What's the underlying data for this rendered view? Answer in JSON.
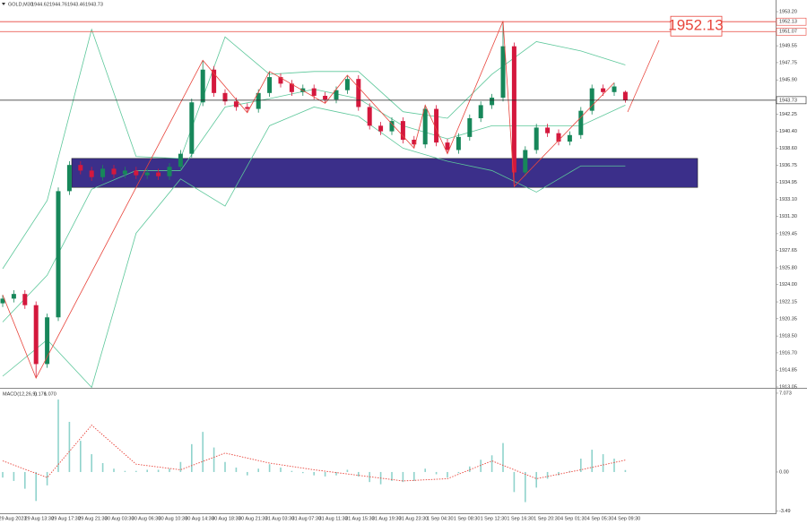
{
  "chart_data": [
    {
      "type": "candlestick",
      "title": "GOLD,M30",
      "up_color": "#17875a",
      "down_color": "#d4183d",
      "open": [
        1922.0,
        1922.5,
        1923.0,
        1921.8,
        1915.5,
        1920.5,
        1934.0,
        1936.8,
        1936.2,
        1935.5,
        1936.4,
        1935.8,
        1936.2,
        1935.7,
        1936.0,
        1935.6,
        1936.6,
        1938.0,
        1943.5,
        1947.0,
        1944.5,
        1943.6,
        1943.0,
        1942.8,
        1944.5,
        1946.2,
        1945.5,
        1944.6,
        1945.0,
        1944.2,
        1943.8,
        1944.8,
        1946.0,
        1943.0,
        1941.0,
        1940.4,
        1941.5,
        1939.5,
        1939.0,
        1942.8,
        1939.2,
        1938.4,
        1939.8,
        1941.8,
        1943.2,
        1944.0,
        1949.5,
        1936.0,
        1938.4,
        1940.8,
        1940.2,
        1939.3,
        1940.0,
        1942.6,
        1945.0,
        1944.6,
        1944.62
      ],
      "high": [
        1922.9,
        1923.4,
        1923.4,
        1922.2,
        1920.9,
        1934.4,
        1937.2,
        1937.2,
        1936.6,
        1936.8,
        1936.8,
        1936.6,
        1936.6,
        1936.4,
        1936.4,
        1937.0,
        1938.4,
        1943.9,
        1948.0,
        1947.4,
        1944.9,
        1944.0,
        1943.4,
        1944.9,
        1946.8,
        1946.6,
        1945.9,
        1945.4,
        1945.4,
        1944.6,
        1945.2,
        1946.4,
        1946.4,
        1943.4,
        1941.4,
        1941.9,
        1941.9,
        1939.9,
        1943.2,
        1943.2,
        1939.6,
        1940.2,
        1942.2,
        1943.6,
        1944.4,
        1952.2,
        1949.9,
        1938.8,
        1941.2,
        1941.2,
        1940.6,
        1940.4,
        1943.0,
        1945.4,
        1945.4,
        1945.6,
        1944.76
      ],
      "low": [
        1921.6,
        1922.1,
        1921.4,
        1914.0,
        1915.1,
        1920.1,
        1933.6,
        1935.8,
        1935.1,
        1935.1,
        1935.4,
        1935.4,
        1935.3,
        1935.3,
        1935.2,
        1935.2,
        1936.2,
        1937.6,
        1943.1,
        1944.1,
        1943.2,
        1942.6,
        1942.4,
        1942.4,
        1944.1,
        1945.1,
        1944.2,
        1944.2,
        1943.8,
        1943.4,
        1943.4,
        1944.4,
        1942.6,
        1940.6,
        1940.0,
        1940.0,
        1939.1,
        1938.6,
        1938.6,
        1938.8,
        1938.0,
        1938.0,
        1939.4,
        1941.4,
        1942.8,
        1943.6,
        1934.5,
        1935.6,
        1938.0,
        1939.8,
        1938.9,
        1938.9,
        1939.6,
        1942.2,
        1944.2,
        1944.2,
        1943.46
      ],
      "close": [
        1922.5,
        1923.0,
        1921.8,
        1915.5,
        1920.5,
        1934.0,
        1936.8,
        1936.2,
        1935.5,
        1936.4,
        1935.8,
        1936.2,
        1935.7,
        1936.0,
        1935.6,
        1936.6,
        1938.0,
        1943.5,
        1947.0,
        1944.5,
        1943.6,
        1943.0,
        1942.8,
        1944.5,
        1946.2,
        1945.5,
        1944.6,
        1945.0,
        1944.2,
        1943.8,
        1944.8,
        1946.0,
        1943.0,
        1941.0,
        1940.4,
        1941.5,
        1939.5,
        1939.0,
        1942.8,
        1939.2,
        1938.4,
        1939.8,
        1941.8,
        1943.2,
        1944.0,
        1949.5,
        1936.0,
        1938.4,
        1940.8,
        1940.2,
        1939.3,
        1940.0,
        1942.6,
        1945.0,
        1944.6,
        1945.2,
        1943.73
      ],
      "bands": {
        "color": "#5cc79a",
        "x": [
          0,
          4,
          8,
          12,
          16,
          20,
          24,
          28,
          32,
          36,
          40,
          44,
          48,
          52,
          56
        ],
        "upper": [
          1925.7,
          1933.0,
          1951.3,
          1937.7,
          1937.5,
          1950.5,
          1946.5,
          1946.8,
          1946.8,
          1942.5,
          1941.8,
          1946.5,
          1950.0,
          1949.0,
          1947.5
        ],
        "middle": [
          1920.0,
          1925.0,
          1934.2,
          1936.2,
          1936.2,
          1943.0,
          1943.9,
          1944.9,
          1943.9,
          1941.0,
          1939.6,
          1941.0,
          1941.0,
          1941.0,
          1943.2
        ],
        "lower": [
          1914.2,
          1918.1,
          1913.0,
          1929.5,
          1935.3,
          1932.4,
          1941.0,
          1943.0,
          1942.0,
          1938.6,
          1937.2,
          1936.2,
          1933.9,
          1936.7,
          1936.7
        ]
      },
      "zigzag": {
        "color": "#e8453c",
        "x": [
          0,
          3,
          18,
          22,
          24,
          29,
          31,
          37,
          38,
          40,
          45,
          46,
          55
        ],
        "values": [
          1922.9,
          1914.0,
          1948.0,
          1942.4,
          1946.8,
          1943.4,
          1946.4,
          1938.6,
          1943.2,
          1938.0,
          1952.2,
          1934.5,
          1945.6
        ]
      },
      "zone": {
        "top": 1937.5,
        "bottom": 1934.4,
        "color": "#3b2f8a"
      },
      "levels": [
        {
          "value": 1952.13,
          "color": "#e8453c"
        },
        {
          "value": 1951.07,
          "color": "#e8453c"
        }
      ],
      "ylim": [
        1913.05,
        1954.45
      ],
      "yticks": [
        {
          "value": 1953.2,
          "label": "1953.20"
        },
        1949.55,
        1947.75,
        {
          "value": 1945.9,
          "label": "1945.90"
        },
        1942.25,
        {
          "value": 1940.4,
          "label": "1940.40"
        },
        {
          "value": 1938.6,
          "label": "1938.60"
        },
        1936.75,
        1934.95,
        {
          "value": 1933.1,
          "label": "1933.10"
        },
        {
          "value": 1931.3,
          "label": "1931.30"
        },
        1929.45,
        1927.65,
        {
          "value": 1925.8,
          "label": "1925.80"
        },
        {
          "value": 1924,
          "label": "1924.00"
        },
        1922.15,
        1920.35,
        {
          "value": 1918.5,
          "label": "1918.50"
        },
        {
          "value": 1916.7,
          "label": "1916.70"
        },
        1914.85,
        1913.05
      ]
    },
    {
      "type": "macd",
      "title": "MACD(12,26,9)",
      "color": "#8fd3cc",
      "values": [
        -0.5,
        -0.8,
        -1.5,
        -2.6,
        -1.2,
        6.5,
        4.5,
        2.8,
        1.6,
        0.8,
        0.3,
        0.1,
        0.1,
        0.2,
        0.2,
        0.3,
        0.9,
        2.5,
        3.6,
        2.2,
        0.9,
        0.4,
        -0.3,
        0.3,
        0.7,
        0.4,
        0.1,
        -0.1,
        -0.3,
        -0.4,
        -0.3,
        0.2,
        -0.4,
        -0.9,
        -1.1,
        -0.8,
        -0.9,
        -0.8,
        0.3,
        -0.2,
        -0.5,
        -0.1,
        0.5,
        1.1,
        1.5,
        2.6,
        -1.8,
        -2.7,
        -1.4,
        -0.6,
        -0.3,
        0.1,
        1.2,
        2.0,
        1.6,
        1.2,
        0.176
      ],
      "signal": {
        "color": "#e8453c",
        "x": [
          0,
          4,
          8,
          12,
          16,
          20,
          24,
          28,
          32,
          36,
          40,
          44,
          48,
          52,
          56
        ],
        "values": [
          1.0,
          -0.5,
          4.2,
          0.7,
          0.2,
          1.7,
          0.8,
          0.2,
          -0.3,
          -0.8,
          -0.6,
          1.0,
          -0.6,
          0.2,
          1.07
        ],
        "value_labels": [
          null,
          null,
          null,
          null,
          null,
          null,
          null,
          null,
          null,
          null,
          null,
          null,
          null,
          null,
          "1.070"
        ]
      },
      "ylim": [
        -3.62,
        7.31
      ],
      "yticks": [
        7.073,
        {
          "value": 0,
          "label": "0.00"
        },
        -3.49
      ],
      "x_labels": [
        "29 Aug 2023",
        "29 Aug 13:30",
        "29 Aug 17:30",
        "29 Aug 21:30",
        "30 Aug 03:30",
        "30 Aug 06:30",
        "30 Aug 10:30",
        "30 Aug 14:30",
        "30 Aug 18:30",
        "30 Aug 21:30",
        "31 Aug 03:30",
        "31 Aug 07:30",
        "31 Aug 11:30",
        "31 Aug 15:30",
        "31 Aug 19:30",
        "31 Aug 23:30",
        "1 Sep 04:30",
        "1 Sep 08:30",
        "1 Sep 12:30",
        "1 Sep 16:30",
        "1 Sep 20:30",
        "4 Sep 01:30",
        "4 Sep 05:30",
        "4 Sep 09:30"
      ]
    }
  ]
}
